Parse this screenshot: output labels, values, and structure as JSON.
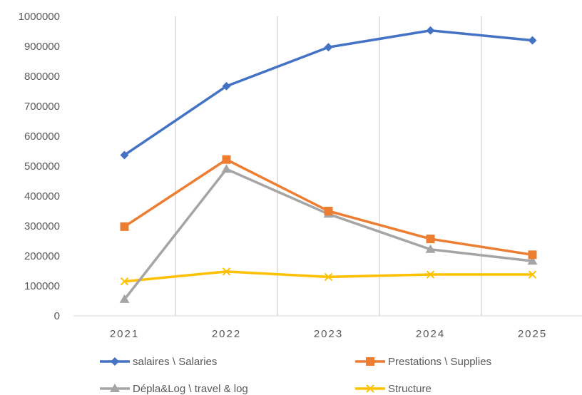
{
  "chart_data": {
    "type": "line",
    "categories": [
      "2021",
      "2022",
      "2023",
      "2024",
      "2025"
    ],
    "ylim": [
      0,
      1000000
    ],
    "yticks": [
      0,
      100000,
      200000,
      300000,
      400000,
      500000,
      600000,
      700000,
      800000,
      900000,
      1000000
    ],
    "grid": "vertical",
    "legend_position": "bottom",
    "series": [
      {
        "name": "salaires \\ Salaries",
        "color": "#4472C4",
        "marker": "diamond",
        "values": [
          537000,
          767000,
          897000,
          953000,
          920000
        ]
      },
      {
        "name": "Prestations \\ Supplies",
        "color": "#ED7D31",
        "marker": "square",
        "values": [
          298000,
          522000,
          350000,
          257000,
          204000
        ]
      },
      {
        "name": "Dépla&Log \\ travel & log",
        "color": "#A5A5A5",
        "marker": "triangle",
        "values": [
          55000,
          490000,
          340000,
          222000,
          183000
        ]
      },
      {
        "name": "Structure",
        "color": "#FFC000",
        "marker": "x",
        "values": [
          115000,
          148000,
          130000,
          138000,
          138000
        ]
      }
    ]
  }
}
